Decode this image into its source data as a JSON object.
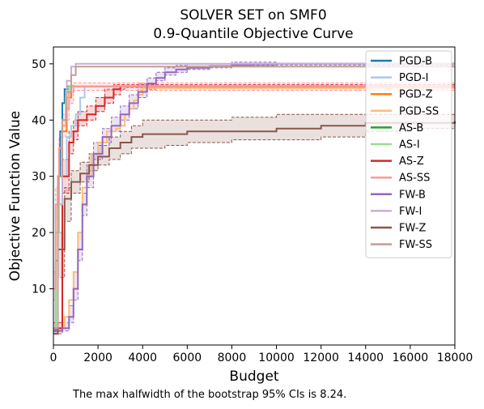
{
  "chart_data": {
    "type": "line",
    "title": "SOLVER SET on SMF0",
    "subtitle": "0.9-Quantile Objective Curve",
    "xlabel": "Budget",
    "ylabel": "Objective Function Value",
    "xlim": [
      0,
      18000
    ],
    "ylim": [
      0,
      53
    ],
    "xticks": [
      0,
      2000,
      4000,
      6000,
      8000,
      10000,
      12000,
      14000,
      16000,
      18000
    ],
    "yticks": [
      10,
      20,
      30,
      40,
      50
    ],
    "grid": false,
    "legend_position": "top-right",
    "series": [
      {
        "name": "PGD-B",
        "color": "#1f77b4",
        "x": [
          0,
          100,
          200,
          300,
          400,
          500,
          700,
          18000
        ],
        "y": [
          2.5,
          15,
          30,
          38,
          43,
          45.5,
          46,
          46
        ]
      },
      {
        "name": "PGD-I",
        "color": "#aec7e8",
        "x": [
          0,
          200,
          400,
          600,
          800,
          1000,
          1200,
          1400,
          18000
        ],
        "y": [
          3,
          20,
          30,
          37,
          39,
          41,
          44,
          46,
          46
        ]
      },
      {
        "name": "PGD-Z",
        "color": "#ff7f0e",
        "x": [
          0,
          200,
          400,
          600,
          800,
          18000
        ],
        "y": [
          3,
          25,
          38,
          44,
          46,
          46
        ]
      },
      {
        "name": "PGD-SS",
        "color": "#ffbb78",
        "x": [
          0,
          300,
          500,
          700,
          900,
          1100,
          1300,
          1500,
          1700,
          2000,
          2400,
          2800,
          3000,
          3200,
          3400,
          3600,
          3800,
          4000,
          18000
        ],
        "y": [
          2.5,
          3,
          5,
          8,
          13,
          20,
          28,
          30,
          34,
          36,
          38,
          38.5,
          39,
          41,
          42,
          43.5,
          44.5,
          45.7,
          45.7
        ]
      },
      {
        "name": "AS-B",
        "color": "#2ca02c",
        "x": [
          0,
          200,
          400,
          600,
          18000
        ],
        "y": [
          3,
          30,
          40,
          46,
          46
        ]
      },
      {
        "name": "AS-I",
        "color": "#98df8a",
        "x": [
          0,
          100,
          250,
          400,
          550,
          700,
          18000
        ],
        "y": [
          3,
          20,
          35,
          40,
          44,
          46,
          46
        ]
      },
      {
        "name": "AS-Z",
        "color": "#d62728",
        "x": [
          0,
          400,
          700,
          900,
          1100,
          1500,
          1900,
          2300,
          2700,
          3000,
          3200,
          18000
        ],
        "y": [
          3,
          30,
          36,
          38,
          40,
          41,
          42.5,
          44,
          45.5,
          46,
          46,
          46
        ]
      },
      {
        "name": "AS-SS",
        "color": "#ff9896",
        "x": [
          0,
          100,
          250,
          400,
          550,
          700,
          900,
          18000
        ],
        "y": [
          10,
          25,
          35,
          39,
          42,
          45,
          46,
          46
        ]
      },
      {
        "name": "FW-B",
        "color": "#9467bd",
        "x": [
          0,
          400,
          700,
          900,
          1100,
          1300,
          1500,
          1800,
          2200,
          2600,
          3000,
          3400,
          3800,
          4200,
          4600,
          5000,
          5500,
          6000,
          7000,
          8000,
          9000,
          10000,
          18000
        ],
        "y": [
          2.5,
          3,
          5,
          10,
          17,
          25,
          30,
          34,
          37,
          39,
          41,
          43,
          45,
          46.5,
          47.5,
          48.5,
          49,
          49.3,
          49.6,
          49.8,
          49.9,
          50,
          50
        ]
      },
      {
        "name": "FW-I",
        "color": "#c5b0d5",
        "x": [
          0,
          200,
          400,
          600,
          800,
          1000,
          18000
        ],
        "y": [
          3,
          25,
          40,
          47,
          49.5,
          50,
          50
        ]
      },
      {
        "name": "FW-Z",
        "color": "#8c564b",
        "x": [
          0,
          200,
          500,
          800,
          1200,
          1600,
          2000,
          2500,
          3000,
          3500,
          4000,
          5000,
          6000,
          7000,
          8000,
          10000,
          11000,
          12000,
          13000,
          14000,
          16000,
          18000
        ],
        "y": [
          2,
          17,
          26,
          29,
          30.5,
          32,
          33.5,
          35,
          36,
          37,
          37.5,
          37.5,
          38,
          38,
          38,
          38.5,
          38.5,
          39,
          39,
          39.5,
          39.5,
          39.8
        ]
      },
      {
        "name": "FW-SS",
        "color": "#c49c94",
        "x": [
          0,
          200,
          400,
          600,
          800,
          1000,
          1200,
          18000
        ],
        "y": [
          3,
          30,
          40,
          45,
          48,
          49.5,
          49.5,
          49.5
        ]
      }
    ],
    "bands": [
      {
        "series": "FW-Z",
        "x": [
          0,
          200,
          500,
          800,
          1200,
          1600,
          2000,
          2500,
          3000,
          3500,
          4000,
          5000,
          6000,
          7000,
          8000,
          10000,
          11000,
          12000,
          13000,
          14000,
          16000,
          18000
        ],
        "lower": [
          2,
          12,
          22,
          27,
          29,
          31,
          32,
          33,
          34,
          35,
          35,
          35.5,
          36,
          36,
          36.5,
          36.5,
          36.5,
          37,
          37,
          38,
          38.5,
          39
        ],
        "upper": [
          3,
          20,
          28,
          31,
          32.5,
          34,
          35.5,
          37,
          38,
          39,
          40,
          40,
          40,
          40,
          40.5,
          41,
          41,
          41,
          41,
          41,
          41,
          41
        ]
      },
      {
        "series": "FW-B",
        "x": [
          0,
          400,
          700,
          900,
          1100,
          1300,
          1500,
          1800,
          2200,
          2600,
          3000,
          3400,
          3800,
          4200,
          4600,
          5000,
          5500,
          6000,
          7000,
          8000,
          9000,
          10000,
          18000
        ],
        "lower": [
          2,
          2.5,
          4,
          8,
          15,
          23,
          28,
          33,
          36,
          38,
          40,
          42,
          44,
          45.5,
          47,
          48,
          48.5,
          49,
          49.3,
          49.5,
          49.7,
          49.8,
          49.8
        ],
        "upper": [
          3,
          4,
          7,
          13,
          20,
          27,
          32,
          36,
          38.5,
          40.5,
          42.5,
          44.5,
          46.5,
          47.5,
          48.5,
          49.3,
          49.7,
          50,
          50,
          50.3,
          50.3,
          50.1,
          50.1
        ]
      },
      {
        "series": "AS-Z",
        "x": [
          0,
          400,
          700,
          900,
          1100,
          1500,
          1900,
          2300,
          2700,
          3000,
          3200,
          18000
        ],
        "lower": [
          2.5,
          27,
          34,
          36.5,
          39,
          40,
          41.5,
          43,
          44.5,
          45.5,
          45.8,
          45.8
        ],
        "upper": [
          4,
          33,
          38,
          40,
          41.5,
          42.5,
          44,
          45.5,
          46.3,
          46.3,
          46.3,
          46.3
        ]
      },
      {
        "series": "AS-SS",
        "x": [
          0,
          100,
          250,
          400,
          550,
          700,
          900,
          18000
        ],
        "lower": [
          8,
          22,
          32,
          37,
          40,
          43,
          45.3,
          45.3
        ],
        "upper": [
          13,
          28,
          37,
          41,
          44,
          46.2,
          46.6,
          46.6
        ]
      }
    ]
  },
  "footnote": "The max halfwidth of the bootstrap 95% CIs is 8.24."
}
